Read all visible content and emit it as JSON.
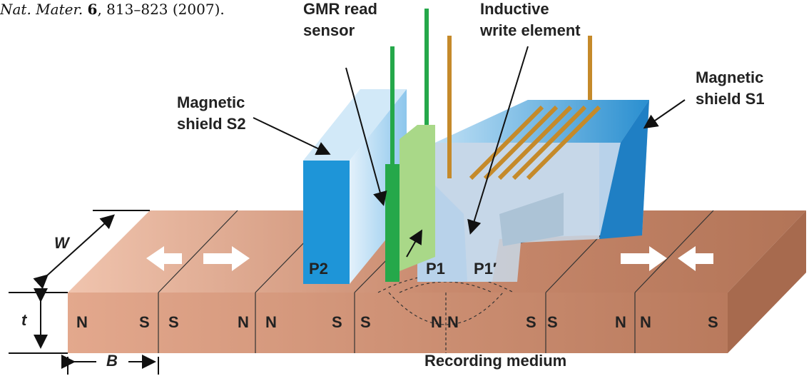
{
  "citation": {
    "journal": "Nat. Mater.",
    "volume": "6",
    "pages": ", 813–823 (2007)."
  },
  "labels": {
    "gmr_line1": "GMR read",
    "gmr_line2": "sensor",
    "write_line1": "Inductive",
    "write_line2": "write element",
    "s1_line1": "Magnetic",
    "s1_line2": "shield S1",
    "s2_line1": "Magnetic",
    "s2_line2": "shield S2"
  },
  "heads": {
    "p2": "P2",
    "p1": "P1",
    "p1_prime": "P1′"
  },
  "dimensions": {
    "w": "W",
    "t": "t",
    "b": "B"
  },
  "poles": [
    "N",
    "S",
    "S",
    "N",
    "N",
    "S",
    "S",
    "N",
    "N",
    "S",
    "S",
    "N",
    "N",
    "S"
  ],
  "medium": "Recording medium"
}
